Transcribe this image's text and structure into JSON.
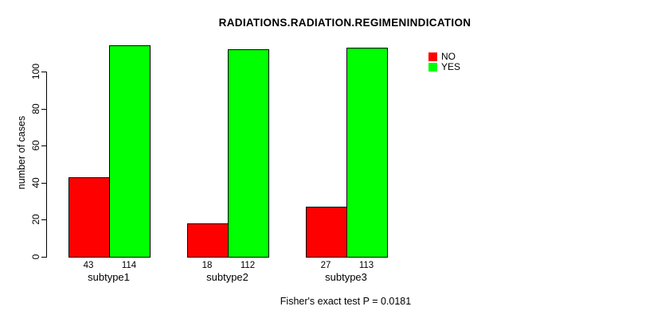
{
  "chart_data": {
    "type": "bar",
    "title": "RADIATIONS.RADIATION.REGIMENINDICATION",
    "categories": [
      "subtype1",
      "subtype2",
      "subtype3"
    ],
    "series": [
      {
        "name": "NO",
        "color": "#ff0000",
        "values": [
          43,
          18,
          27
        ]
      },
      {
        "name": "YES",
        "color": "#00ff00",
        "values": [
          114,
          112,
          113
        ]
      }
    ],
    "xlabel": "",
    "ylabel": "number of cases",
    "ylim": [
      0,
      116
    ],
    "yticks": [
      0,
      20,
      40,
      60,
      80,
      100
    ],
    "grid": false,
    "bar_border_color": "#000000",
    "legend_position": "right-of-plot-top",
    "value_labels_shown": true,
    "annotation": "Fisher's exact test P = 0.0181"
  }
}
